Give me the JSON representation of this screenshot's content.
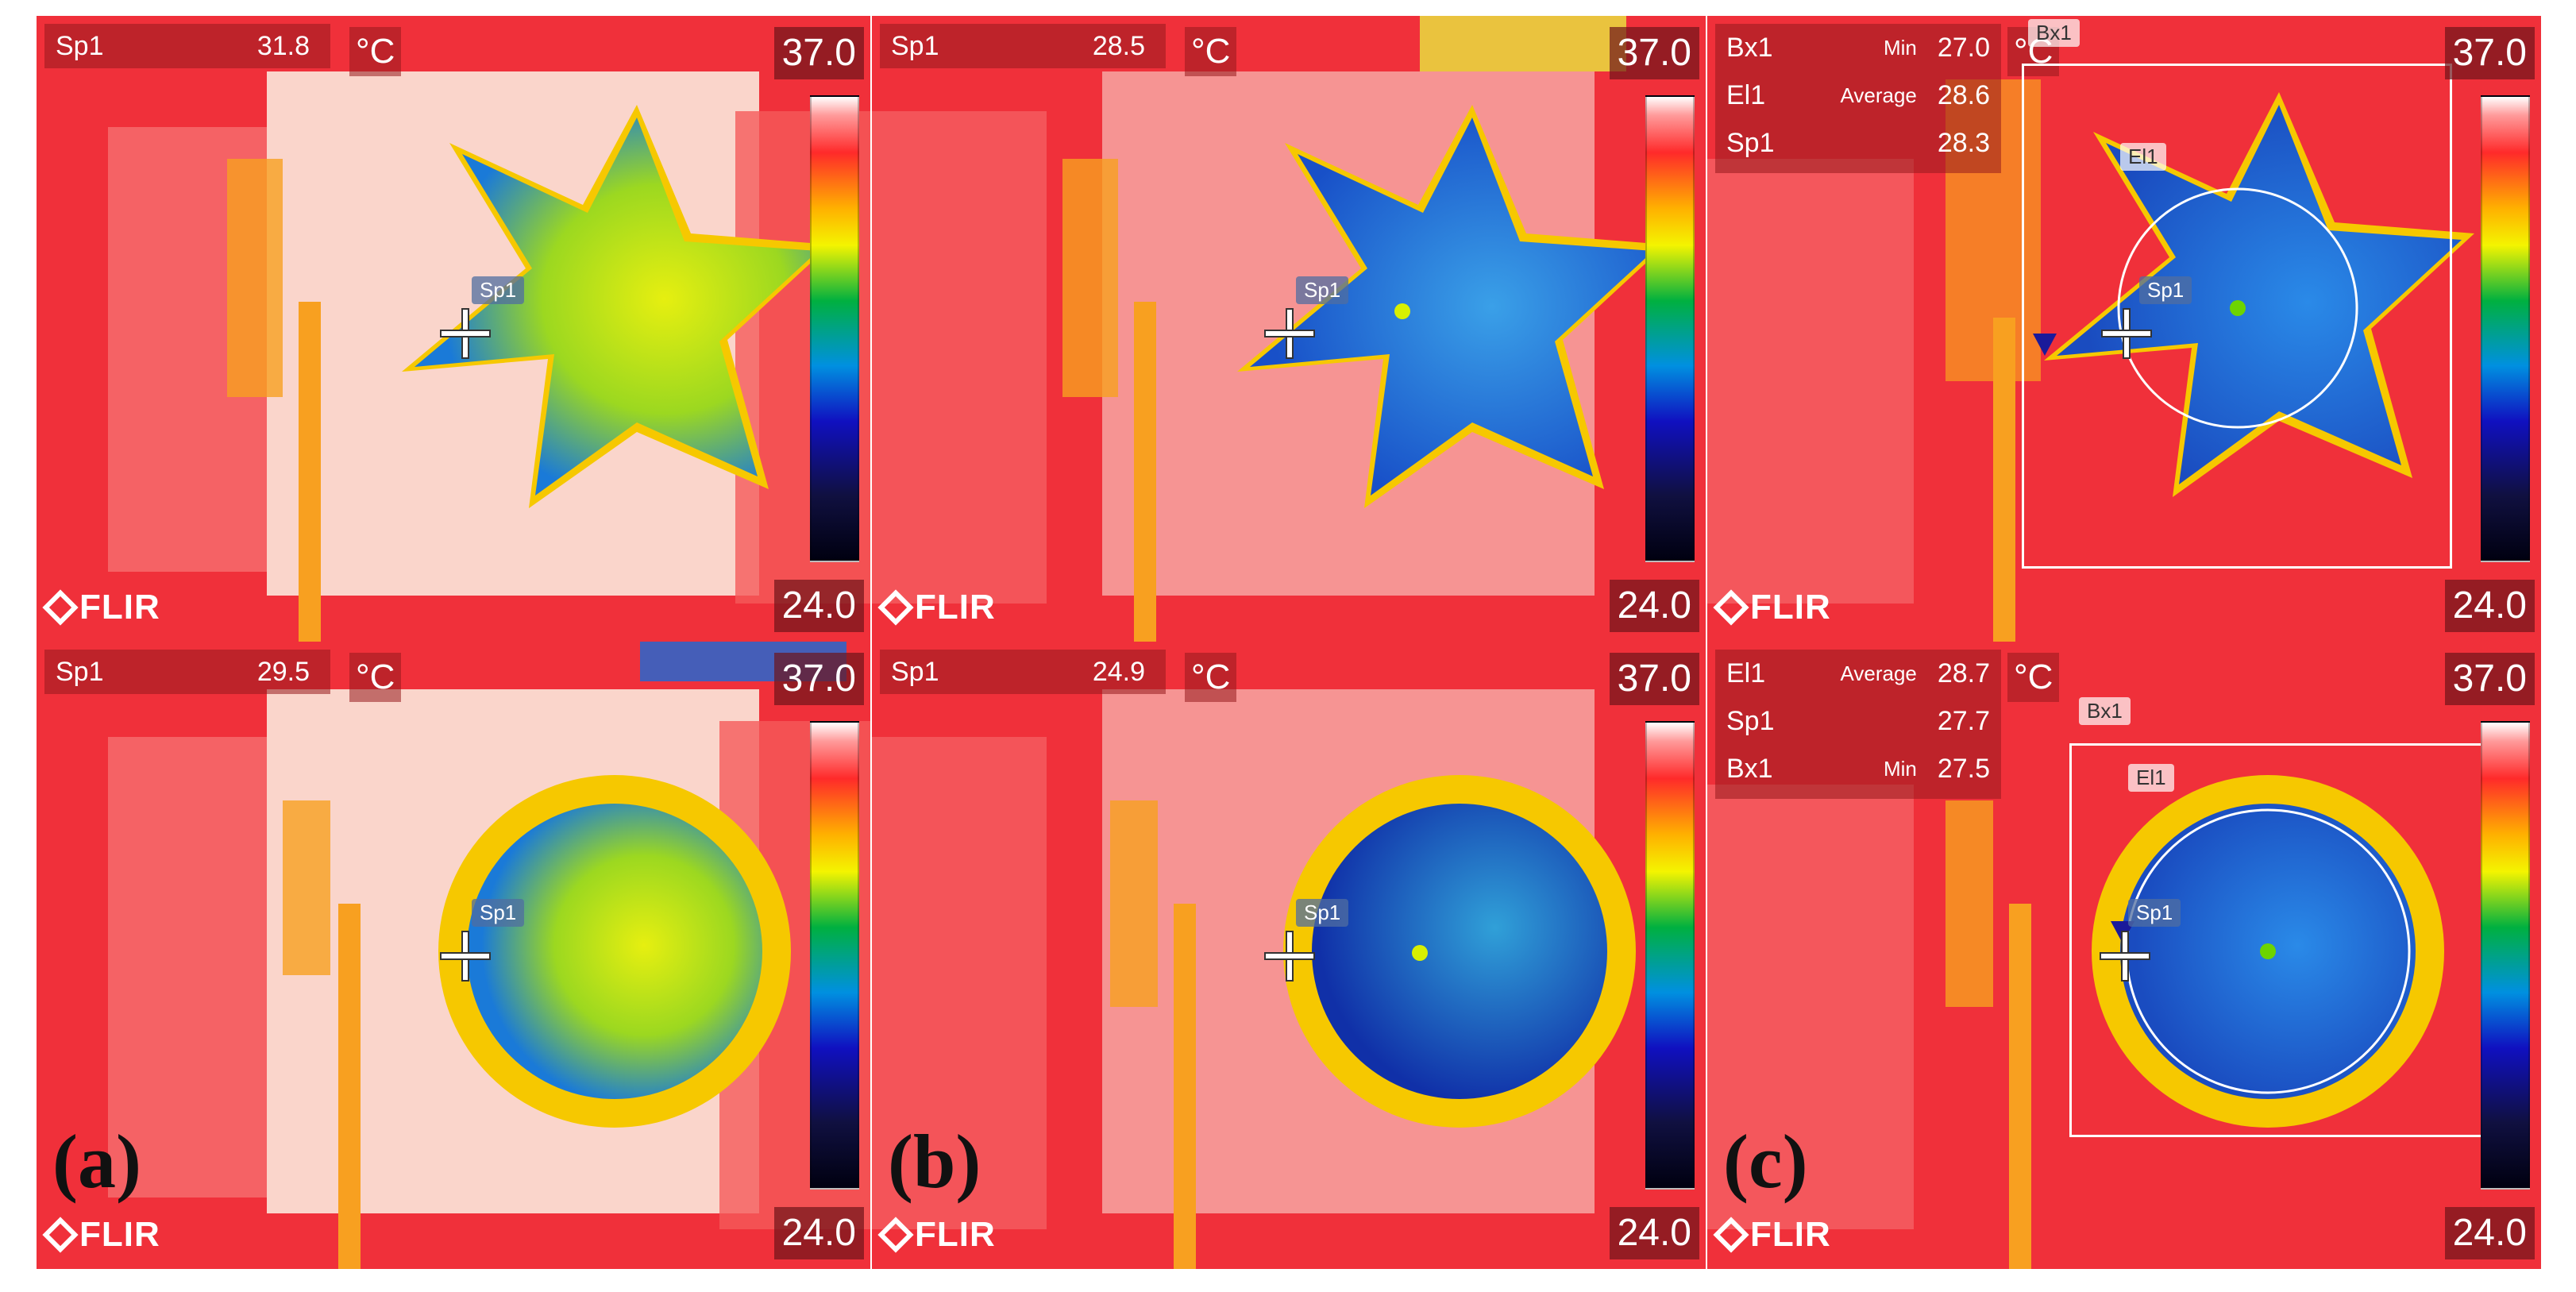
{
  "panels": [
    {
      "id": "a-top",
      "spot_label": "Sp1",
      "spot_value": "31.8",
      "unit": "°C",
      "scale_max": "37.0",
      "scale_min": "24.0",
      "brand": "FLIR",
      "marker_tag": "Sp1",
      "fill_inner": "#e6ef10",
      "fill_outer": "#1a7ad8"
    },
    {
      "id": "b-top",
      "spot_label": "Sp1",
      "spot_value": "28.5",
      "unit": "°C",
      "scale_max": "37.0",
      "scale_min": "24.0",
      "brand": "FLIR",
      "marker_tag": "Sp1",
      "fill_inner": "#3aa0e8",
      "fill_outer": "#1850c8"
    },
    {
      "id": "c-top",
      "unit": "°C",
      "scale_max": "37.0",
      "scale_min": "24.0",
      "brand": "FLIR",
      "marker_tag": "Sp1",
      "box_tag": "Bx1",
      "ellipse_tag": "El1",
      "rows": [
        {
          "label": "Bx1",
          "stat": "Min",
          "value": "27.0"
        },
        {
          "label": "El1",
          "stat": "Average",
          "value": "28.6"
        },
        {
          "label": "Sp1",
          "stat": "",
          "value": "28.3"
        }
      ],
      "fill_inner": "#2a8ae8",
      "fill_outer": "#1a4cc0"
    },
    {
      "id": "a-bottom",
      "spot_label": "Sp1",
      "spot_value": "29.5",
      "unit": "°C",
      "scale_max": "37.0",
      "scale_min": "24.0",
      "brand": "FLIR",
      "marker_tag": "Sp1",
      "panel_label": "(a)",
      "fill_inner": "#e6ef10",
      "fill_outer": "#1a7ad8"
    },
    {
      "id": "b-bottom",
      "spot_label": "Sp1",
      "spot_value": "24.9",
      "unit": "°C",
      "scale_max": "37.0",
      "scale_min": "24.0",
      "brand": "FLIR",
      "marker_tag": "Sp1",
      "panel_label": "(b)",
      "fill_inner": "#30a0d8",
      "fill_outer": "#1030a8"
    },
    {
      "id": "c-bottom",
      "unit": "°C",
      "scale_max": "37.0",
      "scale_min": "24.0",
      "brand": "FLIR",
      "marker_tag": "Sp1",
      "box_tag": "Bx1",
      "ellipse_tag": "El1",
      "panel_label": "(c)",
      "rows": [
        {
          "label": "El1",
          "stat": "Average",
          "value": "28.7"
        },
        {
          "label": "Sp1",
          "stat": "",
          "value": "27.7"
        },
        {
          "label": "Bx1",
          "stat": "Min",
          "value": "27.5"
        }
      ],
      "fill_inner": "#2a8ae8",
      "fill_outer": "#1a4cc0"
    }
  ],
  "colors": {
    "hot_red": "#f0303a",
    "hot_white": "#fbe8dc",
    "warm_orange": "#f8a020",
    "label_box": "#961e23"
  }
}
